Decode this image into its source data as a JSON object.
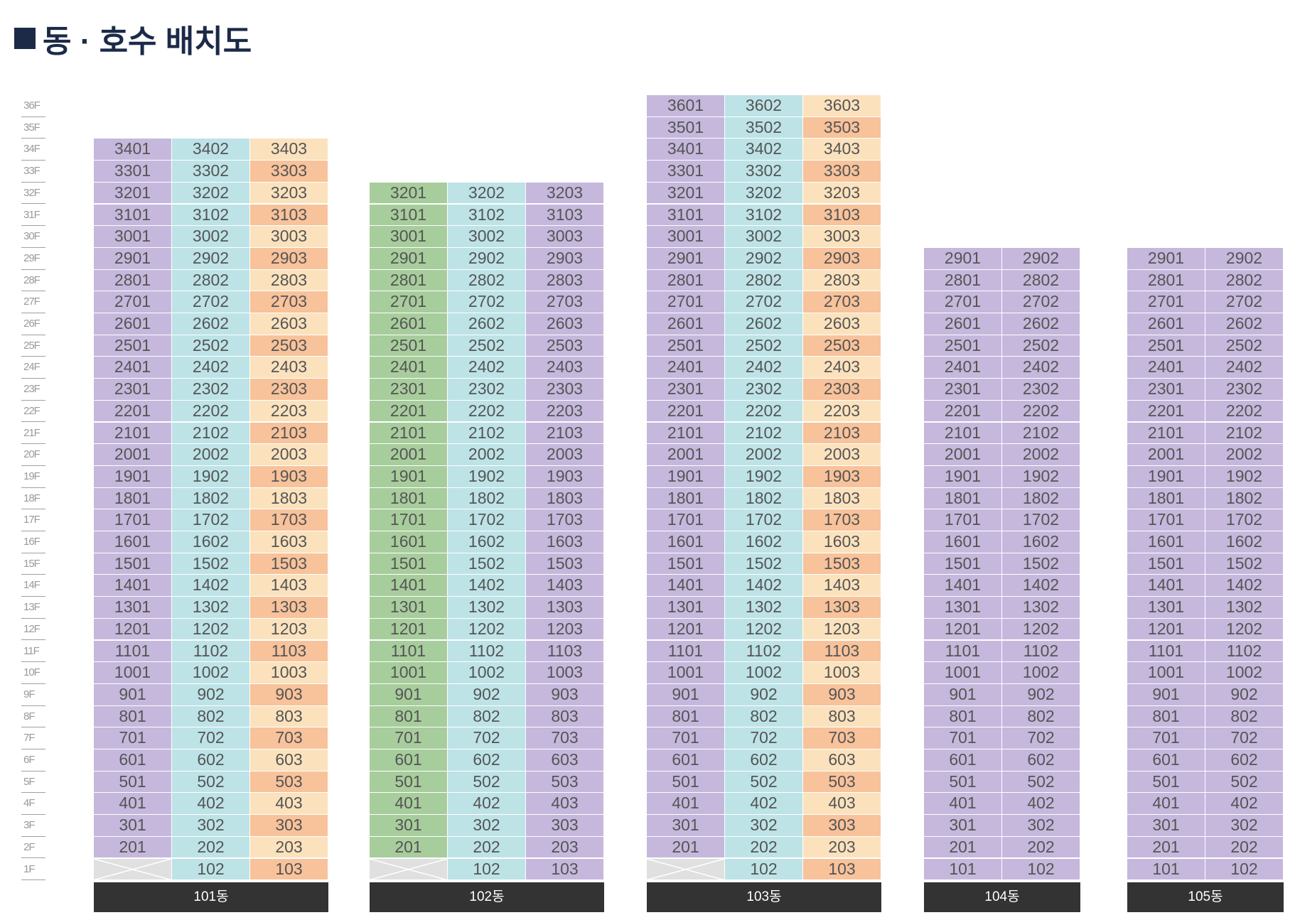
{
  "title": "동 · 호수 배치도",
  "floors": [
    "36F",
    "35F",
    "34F",
    "33F",
    "32F",
    "31F",
    "30F",
    "29F",
    "28F",
    "27F",
    "26F",
    "25F",
    "24F",
    "23F",
    "22F",
    "21F",
    "20F",
    "19F",
    "18F",
    "17F",
    "16F",
    "15F",
    "14F",
    "13F",
    "12F",
    "11F",
    "10F",
    "9F",
    "8F",
    "7F",
    "6F",
    "5F",
    "4F",
    "3F",
    "2F",
    "1F"
  ],
  "colors": {
    "purple": "#c5b8dc",
    "cyan": "#bde3e7",
    "peach": "#fbe2bd",
    "orange": "#f8c29a",
    "green": "#a7cd9c",
    "empty": "#e0e0e0",
    "label_bg": "#333333"
  },
  "buildings": [
    {
      "name": "101동",
      "top_floor": 34,
      "units": 3,
      "first_floor_empty_units": [
        1
      ],
      "first_floor_start": 2,
      "columns": [
        {
          "color": "purple"
        },
        {
          "color": "cyan"
        },
        {
          "alternate": [
            "peach",
            "orange"
          ]
        }
      ]
    },
    {
      "name": "102동",
      "top_floor": 32,
      "units": 3,
      "first_floor_empty_units": [
        1
      ],
      "first_floor_start": 2,
      "columns": [
        {
          "color": "green"
        },
        {
          "color": "cyan"
        },
        {
          "color": "purple"
        }
      ]
    },
    {
      "name": "103동",
      "top_floor": 36,
      "units": 3,
      "first_floor_empty_units": [
        1
      ],
      "first_floor_start": 2,
      "columns": [
        {
          "color": "purple"
        },
        {
          "color": "cyan"
        },
        {
          "alternate": [
            "peach",
            "orange"
          ]
        }
      ]
    },
    {
      "name": "104동",
      "top_floor": 29,
      "units": 2,
      "first_floor_empty_units": [],
      "first_floor_start": 1,
      "columns": [
        {
          "color": "purple"
        },
        {
          "color": "purple"
        }
      ]
    },
    {
      "name": "105동",
      "top_floor": 29,
      "units": 2,
      "first_floor_empty_units": [],
      "first_floor_start": 1,
      "columns": [
        {
          "color": "purple"
        },
        {
          "color": "purple"
        }
      ]
    }
  ]
}
